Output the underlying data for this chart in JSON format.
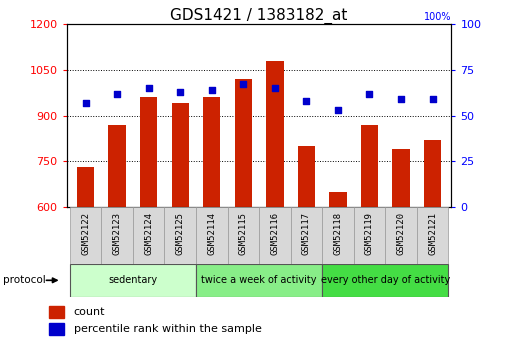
{
  "title": "GDS1421 / 1383182_at",
  "samples": [
    "GSM52122",
    "GSM52123",
    "GSM52124",
    "GSM52125",
    "GSM52114",
    "GSM52115",
    "GSM52116",
    "GSM52117",
    "GSM52118",
    "GSM52119",
    "GSM52120",
    "GSM52121"
  ],
  "counts": [
    730,
    870,
    960,
    940,
    960,
    1020,
    1080,
    800,
    650,
    870,
    790,
    820
  ],
  "percentiles": [
    57,
    62,
    65,
    63,
    64,
    67,
    65,
    58,
    53,
    62,
    59,
    59
  ],
  "groups": [
    {
      "label": "sedentary",
      "start": 0,
      "end": 4,
      "color": "#ccffcc"
    },
    {
      "label": "twice a week of activity",
      "start": 4,
      "end": 8,
      "color": "#88ee88"
    },
    {
      "label": "every other day of activity",
      "start": 8,
      "end": 12,
      "color": "#44dd44"
    }
  ],
  "ylim_left": [
    600,
    1200
  ],
  "ylim_right": [
    0,
    100
  ],
  "yticks_left": [
    600,
    750,
    900,
    1050,
    1200
  ],
  "yticks_right": [
    0,
    25,
    50,
    75,
    100
  ],
  "bar_color": "#cc2200",
  "dot_color": "#0000cc",
  "bar_bottom": 600,
  "title_fontsize": 11,
  "tick_fontsize": 8,
  "cell_color": "#d8d8d8"
}
